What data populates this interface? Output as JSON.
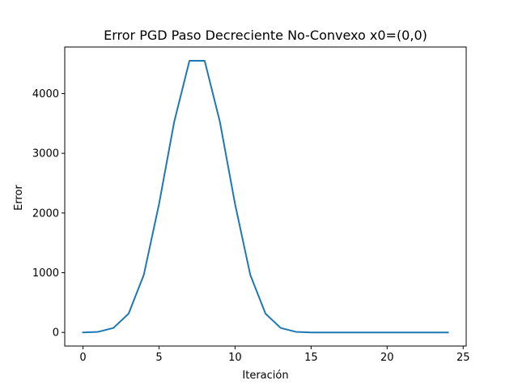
{
  "chart_data": {
    "type": "line",
    "title": "Error PGD Paso Decreciente No-Convexo x0=(0,0)",
    "xlabel": "Iteración",
    "ylabel": "Error",
    "xlim": [
      -1.2,
      25.2
    ],
    "ylim": [
      -228,
      4780
    ],
    "x_ticks": [
      0,
      5,
      10,
      15,
      20,
      25
    ],
    "x_tick_labels": [
      "0",
      "5",
      "10",
      "15",
      "20",
      "25"
    ],
    "y_ticks": [
      0,
      1000,
      2000,
      3000,
      4000
    ],
    "y_tick_labels": [
      "0",
      "1000",
      "2000",
      "3000",
      "4000"
    ],
    "grid": false,
    "legend": "none",
    "series": [
      {
        "color": "#1f77b4",
        "x": [
          0,
          1,
          2,
          3,
          4,
          5,
          6,
          7,
          8,
          9,
          10,
          11,
          12,
          13,
          14,
          15,
          16,
          17,
          18,
          19,
          20,
          21,
          22,
          23,
          24
        ],
        "y": [
          0,
          10,
          75,
          315,
          965,
          2150,
          3530,
          4550,
          4550,
          3530,
          2150,
          965,
          315,
          75,
          10,
          0,
          0,
          0,
          0,
          0,
          0,
          0,
          0,
          0,
          0
        ]
      }
    ]
  }
}
